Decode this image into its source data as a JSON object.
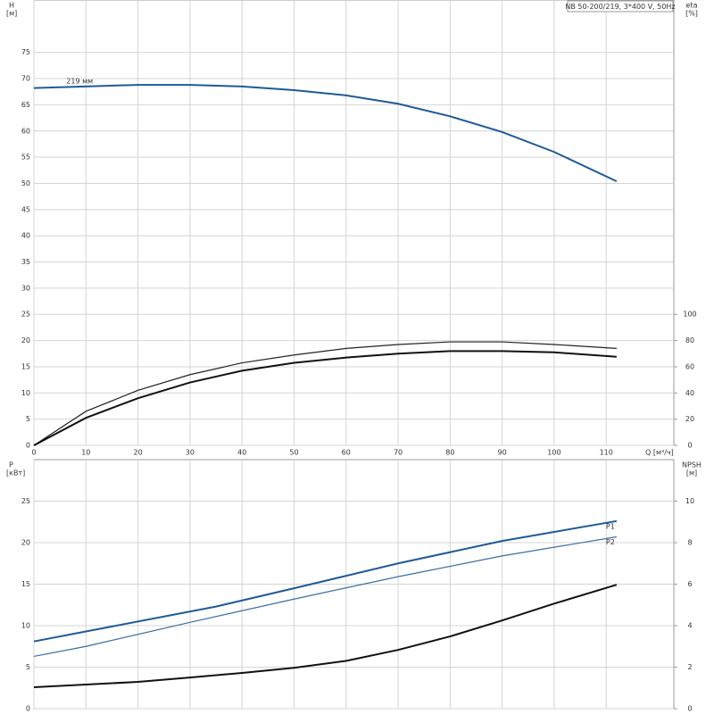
{
  "chart_data": [
    {
      "type": "line",
      "title": "NB 50-200/219, 3*400 V, 50Hz",
      "y_label": "H",
      "y_unit": "[м]",
      "y2_label": "eta",
      "y2_unit": "[%]",
      "x_label": "Q [м³/ч]",
      "xlim": [
        0,
        123
      ],
      "xticks": [
        0,
        10,
        20,
        30,
        40,
        50,
        60,
        70,
        80,
        90,
        100,
        110
      ],
      "ylim": [
        0,
        85
      ],
      "yticks": [
        0,
        5,
        10,
        15,
        20,
        25,
        30,
        35,
        40,
        45,
        50,
        55,
        60,
        65,
        70,
        75
      ],
      "y2lim": [
        0,
        340
      ],
      "y2ticks": [
        0,
        20,
        40,
        60,
        80,
        100
      ],
      "grid": true,
      "show_xtick_labels": true,
      "series": [
        {
          "name": "219 мм",
          "color": "#1f5a96",
          "width": 2,
          "x": [
            0,
            10,
            20,
            30,
            40,
            50,
            60,
            70,
            80,
            90,
            100,
            112
          ],
          "values": [
            68.2,
            68.5,
            68.8,
            68.8,
            68.5,
            67.8,
            66.8,
            65.2,
            62.8,
            59.8,
            56,
            50.4
          ]
        },
        {
          "color": "#222222",
          "width": 1.2,
          "axis": "y2",
          "x": [
            0,
            10,
            20,
            30,
            40,
            50,
            60,
            70,
            80,
            90,
            100,
            112
          ],
          "values": [
            0,
            26,
            42,
            54,
            63,
            69,
            74,
            77,
            79,
            79,
            77,
            74
          ]
        },
        {
          "color": "#111111",
          "width": 2,
          "axis": "y2",
          "x": [
            0,
            10,
            20,
            30,
            40,
            50,
            60,
            70,
            80,
            90,
            100,
            112
          ],
          "values": [
            0,
            21,
            36,
            48,
            57,
            63,
            67,
            70,
            72,
            72,
            71,
            67.6
          ]
        }
      ]
    },
    {
      "type": "line",
      "y_label": "P",
      "y_unit": "[кВт]",
      "y2_label": "NPSH",
      "y2_unit": "[м]",
      "xlim": [
        0,
        123
      ],
      "xticks": [
        0,
        10,
        20,
        30,
        40,
        50,
        60,
        70,
        80,
        90,
        100,
        110
      ],
      "ylim": [
        0,
        30
      ],
      "yticks": [
        0,
        5,
        10,
        15,
        20,
        25
      ],
      "y2lim": [
        0,
        12
      ],
      "y2ticks": [
        0,
        2,
        4,
        6,
        8,
        10
      ],
      "grid": true,
      "show_xtick_labels": false,
      "series": [
        {
          "name": "P1",
          "color": "#1f5a96",
          "width": 2,
          "x": [
            0,
            10,
            35,
            50,
            70,
            90,
            112
          ],
          "values": [
            8.1,
            9.3,
            12.3,
            14.5,
            17.5,
            20.2,
            22.6
          ]
        },
        {
          "name": "P2",
          "color": "#3a6ea5",
          "width": 1.2,
          "x": [
            0,
            10,
            30,
            50,
            70,
            90,
            112
          ],
          "values": [
            6.3,
            7.5,
            10.4,
            13.2,
            15.9,
            18.4,
            20.7
          ]
        },
        {
          "color": "#111111",
          "width": 2,
          "axis": "y2",
          "x": [
            0,
            10,
            20,
            30,
            40,
            50,
            60,
            70,
            80,
            90,
            100,
            112
          ],
          "values": [
            1.03,
            1.16,
            1.29,
            1.5,
            1.72,
            1.97,
            2.3,
            2.83,
            3.48,
            4.25,
            5.06,
            5.97
          ]
        }
      ]
    }
  ]
}
